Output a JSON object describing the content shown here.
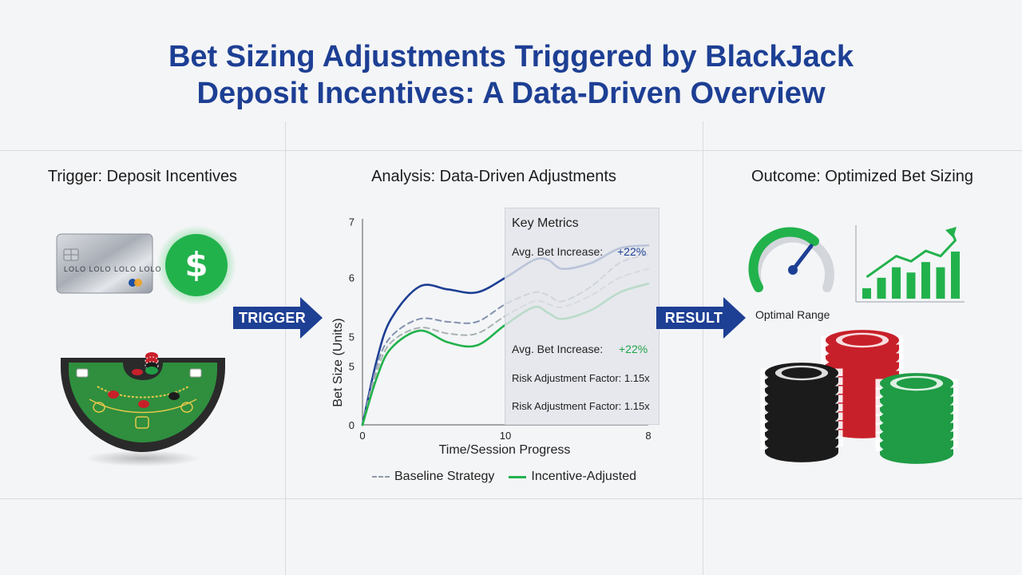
{
  "title_line1": "Bet Sizing Adjustments Triggered  by BlackJack",
  "title_line2": "Deposit Incentives: A Data-Driven Overview",
  "panels": {
    "trigger": {
      "heading": "Trigger: Deposit Incentives"
    },
    "analysis": {
      "heading": "Analysis: Data-Driven Adjustments"
    },
    "outcome": {
      "heading": "Outcome: Optimized Bet Sizing",
      "gauge_label": "Optimal Range"
    }
  },
  "arrows": {
    "trigger": "TRIGGER",
    "result": "RESULT"
  },
  "card": {
    "number_text": "LOLO  LOLO  LOLO  LOLO"
  },
  "metrics": {
    "title": "Key Metrics",
    "rows": [
      {
        "label": "Avg. Bet Increase:",
        "value": "+22%",
        "color": "#1d3f94"
      },
      {
        "label": "Avg. Bet Increase:",
        "value": "+22%",
        "color": "#22a34a"
      },
      {
        "label": "Risk Adjustment Factor: 1.15x",
        "value": ""
      },
      {
        "label": "Risk Adjustment Factor: 1.15x",
        "value": ""
      }
    ]
  },
  "chart_data": {
    "type": "line",
    "xlabel": "Time/Session Progress",
    "ylabel": "Bet Size (Units)",
    "x_ticks": [
      "0",
      "10",
      "8"
    ],
    "y_ticks": [
      "0",
      "5",
      "5",
      "6",
      "7"
    ],
    "xlim": [
      0,
      20
    ],
    "ylim": [
      0,
      7
    ],
    "series": [
      {
        "name": "",
        "style": "solid",
        "color": "#1d3f94",
        "x": [
          0,
          1,
          2,
          4,
          6,
          8,
          10,
          12,
          13,
          14,
          16,
          18,
          20
        ],
        "y": [
          0,
          2.2,
          3.6,
          4.7,
          4.6,
          4.5,
          5.0,
          5.6,
          5.6,
          5.3,
          5.5,
          6.0,
          6.1
        ]
      },
      {
        "name": "",
        "style": "dashed",
        "color": "#8392b0",
        "x": [
          0,
          1,
          2,
          4,
          6,
          8,
          10,
          12,
          13,
          14,
          16,
          18,
          20
        ],
        "y": [
          0,
          2.0,
          3.0,
          3.6,
          3.5,
          3.5,
          4.1,
          4.5,
          4.4,
          4.2,
          4.7,
          5.5,
          5.8
        ]
      },
      {
        "name": "Baseline Strategy",
        "style": "dashed",
        "color": "#a8b3ae",
        "x": [
          0,
          1,
          2,
          4,
          6,
          8,
          10,
          12,
          13,
          14,
          16,
          18,
          20
        ],
        "y": [
          0,
          1.8,
          2.8,
          3.3,
          3.1,
          3.1,
          3.7,
          4.2,
          4.1,
          4.0,
          4.4,
          5.0,
          5.3
        ]
      },
      {
        "name": "Incentive-Adjusted",
        "style": "solid",
        "color": "#22b24c",
        "x": [
          0,
          1,
          2,
          4,
          6,
          8,
          10,
          12,
          13,
          14,
          16,
          18,
          20
        ],
        "y": [
          0,
          1.6,
          2.6,
          3.2,
          2.8,
          2.7,
          3.4,
          4.0,
          3.8,
          3.6,
          3.9,
          4.5,
          4.8
        ]
      }
    ],
    "legend_position": "bottom"
  },
  "bar_icon_values": [
    1,
    2,
    3,
    2.5,
    3.5,
    3,
    4.5
  ],
  "colors": {
    "brand_blue": "#1d3f94",
    "green": "#22b24c",
    "chip_red": "#c8202a",
    "chip_black": "#1b1b1b",
    "chip_green": "#1f9c45",
    "table_green": "#2f8f3e"
  }
}
